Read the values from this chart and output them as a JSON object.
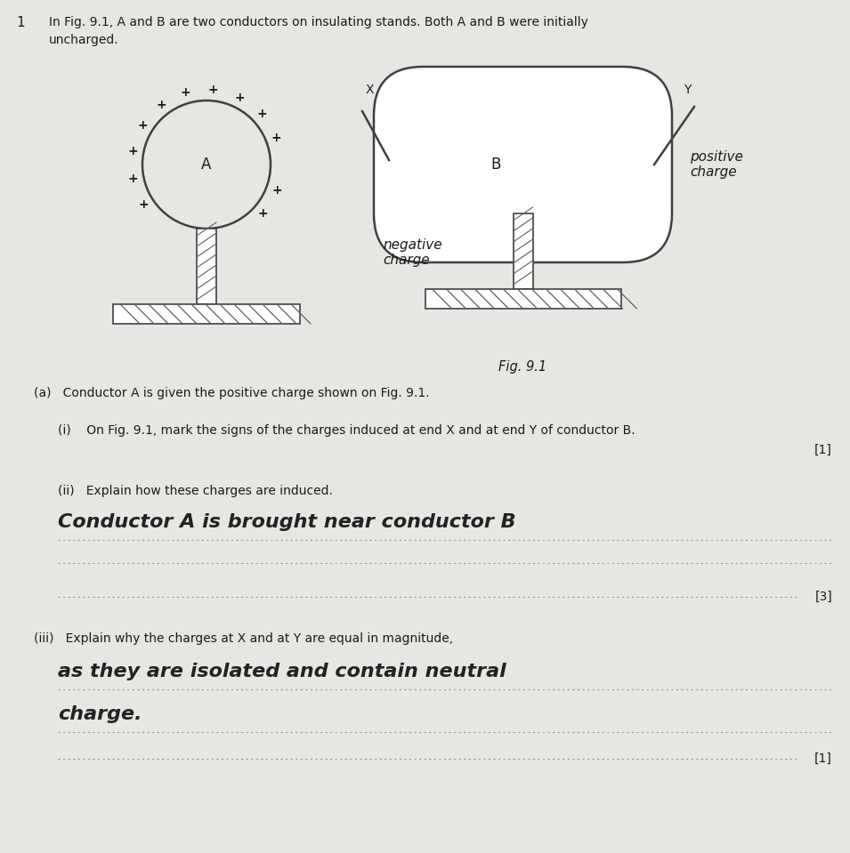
{
  "bg_color": "#e8e6e2",
  "title_number": "1",
  "intro_line1": "In Fig. 9.1, A and B are two conductors on insulating stands. Both A and B were initially",
  "intro_line2": "uncharged.",
  "fig_label": "Fig. 9.1",
  "conductor_A_label": "A",
  "conductor_B_label": "B",
  "label_X": "X",
  "label_Y": "Y",
  "negative_charge_label": "negative\ncharge",
  "positive_charge_label": "positive\ncharge",
  "part_a_text": "(a)   Conductor A is given the positive charge shown on Fig. 9.1.",
  "part_ai_text": "(i)    On Fig. 9.1, mark the signs of the charges induced at end X and at end Y of conductor B.",
  "part_ai_mark": "[1]",
  "part_aii_text": "(ii)   Explain how these charges are induced.",
  "part_aii_answer": "Conductor A is brought near conductor B",
  "part_aii_mark": "[3]",
  "part_aiii_text": "(iii)   Explain why the charges at X and at Y are equal in magnitude,",
  "part_aiii_answer1": "as they are isolated and contain neutral",
  "part_aiii_answer2": "charge.",
  "part_aiii_mark": "[1]",
  "line_color": "#404040",
  "text_color": "#1a1a1a",
  "answer_color": "#222222",
  "dotted_line_color": "#999999",
  "hatch_color": "#606060"
}
